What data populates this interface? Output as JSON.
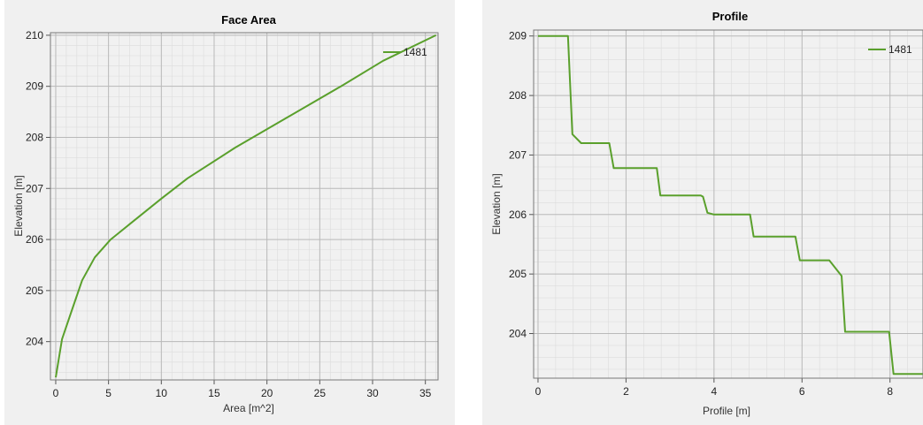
{
  "chart_data": [
    {
      "type": "line",
      "title": "Face Area",
      "xlabel": "Area [m^2]",
      "ylabel": "Elevation [m]",
      "xlim": [
        -0.5,
        36.2
      ],
      "ylim": [
        203.25,
        210.05
      ],
      "xticks": [
        0,
        5,
        10,
        15,
        20,
        25,
        30,
        35
      ],
      "yticks": [
        204,
        205,
        206,
        207,
        208,
        209,
        210
      ],
      "grid": "major and minor",
      "legend_position": "top-right",
      "line_color": "#5aa02c",
      "series": [
        {
          "name": "1481",
          "x": [
            0,
            0.6,
            1.5,
            2.5,
            3.7,
            5.2,
            7.0,
            10.0,
            12.5,
            17.0,
            22.0,
            27.0,
            31.0,
            36.0
          ],
          "y": [
            203.3,
            204.05,
            204.6,
            205.2,
            205.65,
            206.0,
            206.3,
            206.8,
            207.2,
            207.8,
            208.4,
            209.0,
            209.5,
            210.0
          ]
        }
      ]
    },
    {
      "type": "line",
      "title": "Profile",
      "xlabel": "Profile [m]",
      "ylabel": "Elevation [m]",
      "xlim": [
        -0.1,
        8.75
      ],
      "ylim": [
        203.25,
        209.1
      ],
      "xticks": [
        0,
        2,
        4,
        6,
        8
      ],
      "yticks": [
        204,
        205,
        206,
        207,
        208,
        209
      ],
      "grid": "major and minor",
      "legend_position": "top-right",
      "line_color": "#5aa02c",
      "series": [
        {
          "name": "1481",
          "x": [
            0,
            0.68,
            0.78,
            0.98,
            1.62,
            1.72,
            2.7,
            2.78,
            3.7,
            3.75,
            3.85,
            4.0,
            4.82,
            4.9,
            5.85,
            5.95,
            6.62,
            6.9,
            6.98,
            7.98,
            8.08,
            8.75
          ],
          "y": [
            209.0,
            209.0,
            207.35,
            207.2,
            207.2,
            206.78,
            206.78,
            206.32,
            206.32,
            206.3,
            206.03,
            206.0,
            206.0,
            205.63,
            205.63,
            205.23,
            205.23,
            204.97,
            204.03,
            204.03,
            203.32,
            203.32
          ]
        }
      ]
    }
  ]
}
